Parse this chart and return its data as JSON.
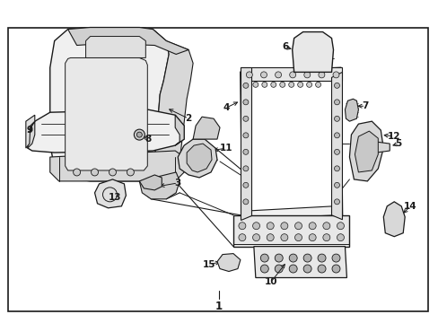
{
  "bg_color": "#ffffff",
  "border_color": "#000000",
  "line_color": "#1a1a1a",
  "fig_width": 4.89,
  "fig_height": 3.6,
  "dpi": 100,
  "shade_color": "#e0e0e0",
  "dark_shade": "#b0b0b0"
}
